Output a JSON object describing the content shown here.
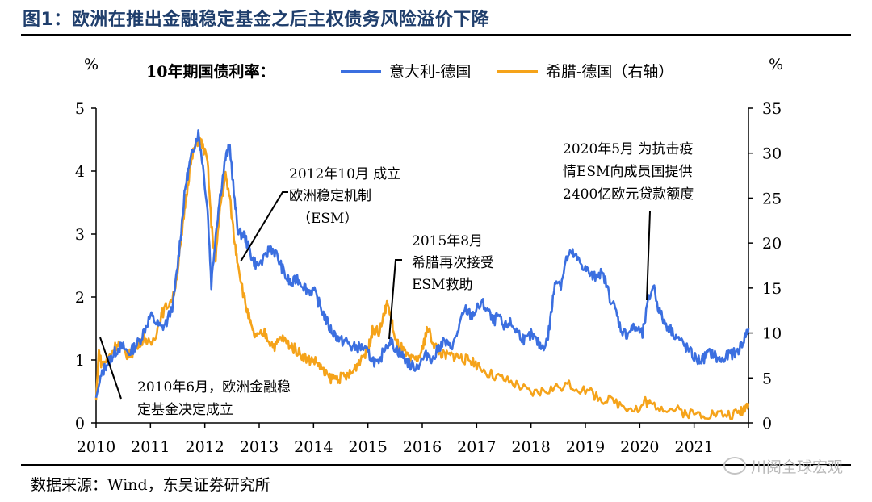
{
  "figure": {
    "title": "图1：欧洲在推出金融稳定基金之后主权债务风险溢价下降",
    "source": "数据来源：Wind，东吴证券研究所",
    "watermark": "川阅全球宏观"
  },
  "chart_data": {
    "type": "line",
    "title": "10年期国债利率：",
    "left_axis": {
      "unit": "%",
      "range": [
        0,
        5
      ],
      "ticks": [
        0,
        1,
        2,
        3,
        4,
        5
      ]
    },
    "right_axis": {
      "unit": "%",
      "range": [
        0,
        35
      ],
      "ticks": [
        0,
        5,
        10,
        15,
        20,
        25,
        30,
        35
      ]
    },
    "x_range": [
      2010,
      2022
    ],
    "x_ticks": [
      "2010",
      "2011",
      "2012",
      "2013",
      "2014",
      "2015",
      "2016",
      "2017",
      "2018",
      "2019",
      "2020",
      "2021"
    ],
    "colors": {
      "italy": "#3b6fe0",
      "greece": "#f5a31a"
    },
    "series": [
      {
        "name": "意大利-德国",
        "axis": "left",
        "color": "#3b6fe0",
        "points": [
          [
            2010.0,
            0.4
          ],
          [
            2010.08,
            0.7
          ],
          [
            2010.17,
            0.9
          ],
          [
            2010.25,
            1.0
          ],
          [
            2010.33,
            1.1
          ],
          [
            2010.42,
            1.2
          ],
          [
            2010.5,
            1.2
          ],
          [
            2010.6,
            1.1
          ],
          [
            2010.7,
            1.2
          ],
          [
            2010.8,
            1.3
          ],
          [
            2010.9,
            1.5
          ],
          [
            2011.0,
            1.7
          ],
          [
            2011.1,
            1.6
          ],
          [
            2011.2,
            1.5
          ],
          [
            2011.3,
            1.6
          ],
          [
            2011.42,
            1.9
          ],
          [
            2011.5,
            2.5
          ],
          [
            2011.58,
            3.2
          ],
          [
            2011.65,
            3.8
          ],
          [
            2011.72,
            4.1
          ],
          [
            2011.8,
            4.4
          ],
          [
            2011.88,
            4.6
          ],
          [
            2011.95,
            4.2
          ],
          [
            2012.05,
            3.4
          ],
          [
            2012.12,
            2.2
          ],
          [
            2012.2,
            3.0
          ],
          [
            2012.28,
            3.6
          ],
          [
            2012.38,
            4.2
          ],
          [
            2012.46,
            4.4
          ],
          [
            2012.55,
            3.5
          ],
          [
            2012.62,
            3.0
          ],
          [
            2012.72,
            3.0
          ],
          [
            2012.8,
            2.8
          ],
          [
            2012.88,
            2.6
          ],
          [
            2012.96,
            2.5
          ],
          [
            2013.1,
            2.6
          ],
          [
            2013.2,
            2.8
          ],
          [
            2013.3,
            2.7
          ],
          [
            2013.4,
            2.5
          ],
          [
            2013.5,
            2.3
          ],
          [
            2013.6,
            2.2
          ],
          [
            2013.7,
            2.3
          ],
          [
            2013.8,
            2.2
          ],
          [
            2013.9,
            2.1
          ],
          [
            2014.0,
            2.1
          ],
          [
            2014.1,
            1.9
          ],
          [
            2014.2,
            1.7
          ],
          [
            2014.3,
            1.5
          ],
          [
            2014.4,
            1.4
          ],
          [
            2014.5,
            1.3
          ],
          [
            2014.6,
            1.3
          ],
          [
            2014.7,
            1.2
          ],
          [
            2014.8,
            1.2
          ],
          [
            2014.9,
            1.2
          ],
          [
            2015.0,
            1.1
          ],
          [
            2015.1,
            1.0
          ],
          [
            2015.2,
            0.9
          ],
          [
            2015.3,
            1.2
          ],
          [
            2015.4,
            1.3
          ],
          [
            2015.5,
            1.2
          ],
          [
            2015.6,
            1.1
          ],
          [
            2015.7,
            1.0
          ],
          [
            2015.8,
            0.9
          ],
          [
            2015.9,
            0.9
          ],
          [
            2016.0,
            1.0
          ],
          [
            2016.1,
            1.1
          ],
          [
            2016.2,
            1.0
          ],
          [
            2016.3,
            1.2
          ],
          [
            2016.4,
            1.3
          ],
          [
            2016.5,
            1.2
          ],
          [
            2016.6,
            1.3
          ],
          [
            2016.7,
            1.6
          ],
          [
            2016.8,
            1.8
          ],
          [
            2016.9,
            1.7
          ],
          [
            2017.0,
            1.8
          ],
          [
            2017.1,
            1.9
          ],
          [
            2017.2,
            1.8
          ],
          [
            2017.3,
            1.6
          ],
          [
            2017.4,
            1.7
          ],
          [
            2017.5,
            1.5
          ],
          [
            2017.6,
            1.6
          ],
          [
            2017.7,
            1.5
          ],
          [
            2017.8,
            1.4
          ],
          [
            2017.9,
            1.3
          ],
          [
            2018.0,
            1.4
          ],
          [
            2018.1,
            1.3
          ],
          [
            2018.2,
            1.2
          ],
          [
            2018.3,
            1.3
          ],
          [
            2018.38,
            1.8
          ],
          [
            2018.45,
            2.3
          ],
          [
            2018.55,
            2.2
          ],
          [
            2018.65,
            2.6
          ],
          [
            2018.75,
            2.7
          ],
          [
            2018.85,
            2.6
          ],
          [
            2018.95,
            2.5
          ],
          [
            2019.05,
            2.4
          ],
          [
            2019.15,
            2.3
          ],
          [
            2019.25,
            2.4
          ],
          [
            2019.35,
            2.3
          ],
          [
            2019.45,
            2.0
          ],
          [
            2019.55,
            1.8
          ],
          [
            2019.65,
            1.5
          ],
          [
            2019.75,
            1.4
          ],
          [
            2019.85,
            1.5
          ],
          [
            2019.95,
            1.5
          ],
          [
            2020.05,
            1.4
          ],
          [
            2020.15,
            1.9
          ],
          [
            2020.25,
            2.2
          ],
          [
            2020.35,
            1.8
          ],
          [
            2020.45,
            1.6
          ],
          [
            2020.55,
            1.5
          ],
          [
            2020.65,
            1.4
          ],
          [
            2020.75,
            1.3
          ],
          [
            2020.85,
            1.2
          ],
          [
            2020.95,
            1.1
          ],
          [
            2021.05,
            1.0
          ],
          [
            2021.15,
            1.0
          ],
          [
            2021.25,
            1.1
          ],
          [
            2021.35,
            1.1
          ],
          [
            2021.45,
            1.0
          ],
          [
            2021.55,
            1.0
          ],
          [
            2021.65,
            1.1
          ],
          [
            2021.75,
            1.1
          ],
          [
            2021.85,
            1.2
          ],
          [
            2021.95,
            1.4
          ],
          [
            2022.0,
            1.5
          ]
        ]
      },
      {
        "name": "希腊-德国（右轴）",
        "axis": "right",
        "color": "#f5a31a",
        "points": [
          [
            2010.0,
            2.5
          ],
          [
            2010.05,
            8.0
          ],
          [
            2010.1,
            6.5
          ],
          [
            2010.2,
            7.0
          ],
          [
            2010.3,
            8.0
          ],
          [
            2010.4,
            9.0
          ],
          [
            2010.5,
            8.0
          ],
          [
            2010.6,
            7.5
          ],
          [
            2010.7,
            8.0
          ],
          [
            2010.8,
            9.0
          ],
          [
            2010.9,
            9.5
          ],
          [
            2011.0,
            8.5
          ],
          [
            2011.1,
            10.0
          ],
          [
            2011.2,
            12.0
          ],
          [
            2011.3,
            13.0
          ],
          [
            2011.42,
            14.0
          ],
          [
            2011.5,
            17.0
          ],
          [
            2011.58,
            21.0
          ],
          [
            2011.65,
            25.0
          ],
          [
            2011.72,
            28.0
          ],
          [
            2011.8,
            30.5
          ],
          [
            2011.88,
            31.5
          ],
          [
            2011.95,
            31.0
          ],
          [
            2012.05,
            29.0
          ],
          [
            2012.12,
            22.0
          ],
          [
            2012.2,
            18.0
          ],
          [
            2012.28,
            24.0
          ],
          [
            2012.38,
            27.5
          ],
          [
            2012.46,
            25.0
          ],
          [
            2012.55,
            20.0
          ],
          [
            2012.62,
            17.5
          ],
          [
            2012.72,
            14.0
          ],
          [
            2012.8,
            12.0
          ],
          [
            2012.88,
            10.0
          ],
          [
            2012.96,
            9.5
          ],
          [
            2013.1,
            10.0
          ],
          [
            2013.2,
            9.0
          ],
          [
            2013.3,
            8.5
          ],
          [
            2013.4,
            9.5
          ],
          [
            2013.5,
            9.0
          ],
          [
            2013.6,
            8.5
          ],
          [
            2013.7,
            8.0
          ],
          [
            2013.8,
            7.5
          ],
          [
            2013.9,
            7.0
          ],
          [
            2014.0,
            7.0
          ],
          [
            2014.1,
            6.5
          ],
          [
            2014.2,
            5.5
          ],
          [
            2014.3,
            5.0
          ],
          [
            2014.4,
            5.0
          ],
          [
            2014.5,
            5.0
          ],
          [
            2014.6,
            5.2
          ],
          [
            2014.7,
            5.5
          ],
          [
            2014.8,
            6.5
          ],
          [
            2014.9,
            7.5
          ],
          [
            2015.0,
            8.0
          ],
          [
            2015.05,
            9.5
          ],
          [
            2015.1,
            10.5
          ],
          [
            2015.2,
            10.0
          ],
          [
            2015.3,
            12.0
          ],
          [
            2015.35,
            13.5
          ],
          [
            2015.45,
            11.0
          ],
          [
            2015.5,
            9.0
          ],
          [
            2015.6,
            8.5
          ],
          [
            2015.7,
            7.5
          ],
          [
            2015.8,
            7.0
          ],
          [
            2015.9,
            7.0
          ],
          [
            2016.0,
            8.0
          ],
          [
            2016.05,
            9.5
          ],
          [
            2016.1,
            10.5
          ],
          [
            2016.2,
            9.0
          ],
          [
            2016.3,
            8.0
          ],
          [
            2016.4,
            7.5
          ],
          [
            2016.5,
            7.5
          ],
          [
            2016.6,
            7.5
          ],
          [
            2016.7,
            7.3
          ],
          [
            2016.8,
            7.0
          ],
          [
            2016.9,
            7.0
          ],
          [
            2017.0,
            6.5
          ],
          [
            2017.2,
            5.5
          ],
          [
            2017.4,
            5.0
          ],
          [
            2017.6,
            4.5
          ],
          [
            2017.8,
            4.0
          ],
          [
            2018.0,
            3.2
          ],
          [
            2018.2,
            3.5
          ],
          [
            2018.4,
            3.8
          ],
          [
            2018.6,
            4.2
          ],
          [
            2018.8,
            4.0
          ],
          [
            2019.0,
            3.6
          ],
          [
            2019.2,
            3.0
          ],
          [
            2019.4,
            2.5
          ],
          [
            2019.6,
            2.2
          ],
          [
            2019.8,
            1.8
          ],
          [
            2020.0,
            1.5
          ],
          [
            2020.1,
            2.5
          ],
          [
            2020.2,
            2.0
          ],
          [
            2020.4,
            1.8
          ],
          [
            2020.6,
            1.5
          ],
          [
            2020.8,
            1.2
          ],
          [
            2021.0,
            1.0
          ],
          [
            2021.2,
            1.0
          ],
          [
            2021.4,
            1.0
          ],
          [
            2021.6,
            0.9
          ],
          [
            2021.8,
            1.0
          ],
          [
            2021.9,
            1.5
          ],
          [
            2022.0,
            2.2
          ]
        ]
      }
    ],
    "annotations": [
      {
        "lines": [
          "2010年6月，欧洲金融稳",
          "定基金决定成立"
        ]
      },
      {
        "lines": [
          "2012年10月 成立",
          "欧洲稳定机制",
          "（ESM）"
        ]
      },
      {
        "lines": [
          "2015年8月",
          "希腊再次接受",
          "ESM救助"
        ]
      },
      {
        "lines": [
          "2020年5月 为抗击疫",
          "情ESM向成员国提供",
          "2400亿欧元贷款额度"
        ]
      }
    ]
  }
}
